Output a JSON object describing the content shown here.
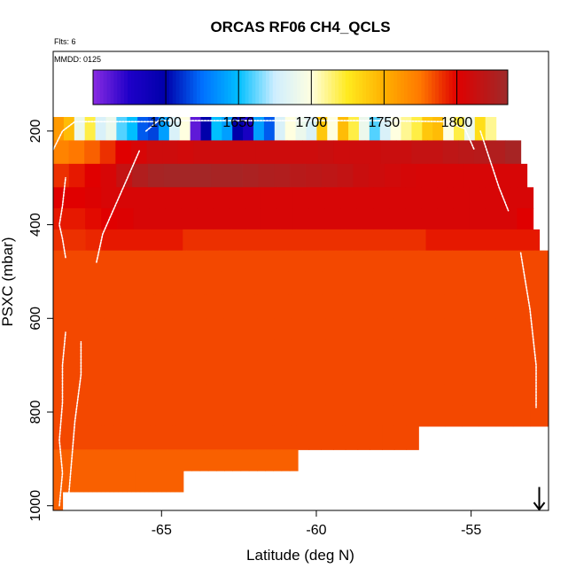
{
  "chart_data": {
    "type": "heatmap",
    "title": "ORCAS RF06 CH4_QCLS",
    "notes": {
      "flights": "Flts: 6",
      "date": "MMDD: 0125"
    },
    "xlabel": "Latitude (deg N)",
    "ylabel": "PSXC (mbar)",
    "xlim": [
      -68.5,
      -52.5
    ],
    "ylim": [
      1010,
      30
    ],
    "y_reversed": true,
    "x_ticks": [
      -65,
      -60,
      -55
    ],
    "y_ticks": [
      200,
      400,
      600,
      800,
      1000
    ],
    "x_tick_labels": [
      "-65",
      "-60",
      "-55"
    ],
    "y_tick_labels": [
      "200",
      "400",
      "600",
      "800",
      "1000"
    ],
    "grid": false,
    "colorbar": {
      "range": [
        1550,
        1835
      ],
      "ticks": [
        1600,
        1650,
        1700,
        1750,
        1800
      ],
      "tick_labels": [
        "1600",
        "1650",
        "1700",
        "1750",
        "1800"
      ],
      "stops": [
        {
          "value": 1550,
          "color": "#8a2be2"
        },
        {
          "value": 1575,
          "color": "#1e00c8"
        },
        {
          "value": 1600,
          "color": "#0000aa"
        },
        {
          "value": 1625,
          "color": "#0070ff"
        },
        {
          "value": 1650,
          "color": "#00bfff"
        },
        {
          "value": 1675,
          "color": "#cfeeff"
        },
        {
          "value": 1700,
          "color": "#ffffe0"
        },
        {
          "value": 1725,
          "color": "#ffea1e"
        },
        {
          "value": 1750,
          "color": "#ffb000"
        },
        {
          "value": 1775,
          "color": "#ff7800"
        },
        {
          "value": 1800,
          "color": "#e00000"
        },
        {
          "value": 1835,
          "color": "#9e2a2a"
        }
      ]
    },
    "rows": [
      {
        "p_top": 170,
        "p_bottom": 220,
        "x_start": -68.5,
        "x_end": -54.2,
        "values": [
          1760,
          1745,
          1690,
          1720,
          1680,
          1690,
          1660,
          1650,
          1620,
          1615,
          1640,
          1680,
          1700,
          1560,
          1600,
          1650,
          1640,
          1600,
          1580,
          1640,
          1620,
          1680,
          1700,
          1690,
          1680,
          1740,
          1700,
          1745,
          1720,
          1690,
          1660,
          1680,
          1700,
          1710,
          1720,
          1740,
          1745,
          1700,
          1720,
          1690,
          1730,
          1710
        ]
      },
      {
        "p_top": 220,
        "p_bottom": 270,
        "x_start": -68.5,
        "x_end": -53.4,
        "values": [
          1770,
          1775,
          1780,
          1790,
          1800,
          1805,
          1810,
          1810,
          1808,
          1810,
          1810,
          1810,
          1810,
          1810,
          1810,
          1810,
          1810,
          1812,
          1810,
          1810,
          1810,
          1812,
          1812,
          1815,
          1815,
          1818,
          1820,
          1822,
          1825,
          1830
        ]
      },
      {
        "p_top": 270,
        "p_bottom": 320,
        "x_start": -68.5,
        "x_end": -53.2,
        "values": [
          1790,
          1795,
          1800,
          1805,
          1815,
          1825,
          1830,
          1832,
          1832,
          1832,
          1830,
          1830,
          1828,
          1826,
          1825,
          1822,
          1820,
          1818,
          1816,
          1812,
          1810,
          1808,
          1806,
          1805,
          1805,
          1805,
          1805,
          1805,
          1805,
          1805
        ]
      },
      {
        "p_top": 320,
        "p_bottom": 365,
        "x_start": -68.5,
        "x_end": -53.0,
        "values": [
          1800,
          1800,
          1802,
          1805,
          1805,
          1805,
          1805,
          1805,
          1805,
          1805,
          1805,
          1805,
          1805,
          1805,
          1805,
          1805,
          1805,
          1805,
          1805,
          1805,
          1805,
          1805,
          1805,
          1805,
          1805,
          1805,
          1805,
          1805,
          1805,
          1805
        ]
      },
      {
        "p_top": 365,
        "p_bottom": 410,
        "x_start": -68.5,
        "x_end": -53.0,
        "values": [
          1795,
          1795,
          1798,
          1800,
          1802,
          1805,
          1805,
          1805,
          1805,
          1805,
          1805,
          1805,
          1805,
          1805,
          1805,
          1805,
          1805,
          1805,
          1805,
          1805,
          1805,
          1805,
          1805,
          1805,
          1805,
          1805,
          1805,
          1805,
          1805,
          1800
        ]
      },
      {
        "p_top": 410,
        "p_bottom": 455,
        "x_start": -68.5,
        "x_end": -52.8,
        "values": [
          1790,
          1790,
          1792,
          1795,
          1795,
          1795,
          1795,
          1795,
          1790,
          1790,
          1790,
          1790,
          1790,
          1790,
          1790,
          1790,
          1790,
          1790,
          1790,
          1790,
          1790,
          1790,
          1790,
          1795,
          1795,
          1795,
          1795,
          1795,
          1795,
          1795
        ]
      },
      {
        "p_top": 455,
        "p_bottom": 500,
        "x_start": -68.5,
        "x_end": -52.4,
        "values": [
          1785,
          1785,
          1785,
          1785,
          1785,
          1785,
          1785,
          1785,
          1785,
          1785,
          1785,
          1785,
          1785,
          1785,
          1785,
          1785,
          1785,
          1785,
          1785,
          1785,
          1785,
          1785,
          1785,
          1785,
          1785,
          1785,
          1785,
          1785,
          1785,
          1785
        ]
      },
      {
        "p_top": 500,
        "p_bottom": 550,
        "x_start": -68.5,
        "x_end": -52.2,
        "values": [
          1785,
          1785,
          1785,
          1785,
          1785,
          1785,
          1785,
          1785,
          1785,
          1785,
          1785,
          1785,
          1785,
          1785,
          1785,
          1785,
          1785,
          1785,
          1785,
          1785,
          1785,
          1785,
          1785,
          1785,
          1785,
          1785,
          1785,
          1785,
          1785,
          1785
        ]
      },
      {
        "p_top": 550,
        "p_bottom": 600,
        "x_start": -68.5,
        "x_end": -52.0,
        "values": [
          1785,
          1785,
          1785,
          1785,
          1785,
          1785,
          1785,
          1785,
          1785,
          1785,
          1785,
          1785,
          1785,
          1785,
          1785,
          1785,
          1785,
          1785,
          1785,
          1785,
          1785,
          1785,
          1785,
          1785,
          1785,
          1785,
          1785,
          1785,
          1785,
          1785
        ]
      },
      {
        "p_top": 600,
        "p_bottom": 645,
        "x_start": -68.5,
        "x_end": -52.0,
        "values": [
          1785,
          1785,
          1785,
          1785,
          1785,
          1785,
          1785,
          1785,
          1785,
          1785,
          1785,
          1785,
          1785,
          1785,
          1785,
          1785,
          1785,
          1785,
          1785,
          1785,
          1785,
          1785,
          1785,
          1785,
          1785,
          1785,
          1785,
          1785,
          1785,
          1785
        ]
      },
      {
        "p_top": 645,
        "p_bottom": 690,
        "x_start": -68.5,
        "x_end": -52.0,
        "values": [
          1785,
          1785,
          1785,
          1785,
          1785,
          1785,
          1785,
          1785,
          1785,
          1785,
          1785,
          1785,
          1785,
          1785,
          1785,
          1785,
          1785,
          1785,
          1785,
          1785,
          1785,
          1785,
          1785,
          1785,
          1785,
          1785,
          1785,
          1785,
          1785,
          1785
        ]
      },
      {
        "p_top": 690,
        "p_bottom": 740,
        "x_start": -68.5,
        "x_end": -52.0,
        "values": [
          1785,
          1785,
          1785,
          1785,
          1785,
          1785,
          1785,
          1785,
          1785,
          1785,
          1785,
          1785,
          1785,
          1785,
          1785,
          1785,
          1785,
          1785,
          1785,
          1785,
          1785,
          1785,
          1785,
          1785,
          1785,
          1785,
          1785,
          1785,
          1785,
          1785
        ]
      },
      {
        "p_top": 740,
        "p_bottom": 785,
        "x_start": -68.5,
        "x_end": -52.0,
        "values": [
          1785,
          1785,
          1785,
          1785,
          1785,
          1785,
          1785,
          1785,
          1785,
          1785,
          1785,
          1785,
          1785,
          1785,
          1785,
          1785,
          1785,
          1785,
          1785,
          1785,
          1785,
          1785,
          1785,
          1785,
          1785,
          1785,
          1785,
          1785,
          1785,
          1785
        ]
      },
      {
        "p_top": 785,
        "p_bottom": 830,
        "x_start": -68.5,
        "x_end": -52.0,
        "values": [
          1785,
          1785,
          1785,
          1785,
          1785,
          1785,
          1785,
          1785,
          1785,
          1785,
          1785,
          1785,
          1785,
          1785,
          1785,
          1785,
          1785,
          1785,
          1785,
          1785,
          1785,
          1785,
          1785,
          1785,
          1785,
          1785,
          1785,
          1785,
          1785,
          1785
        ]
      },
      {
        "p_top": 830,
        "p_bottom": 880,
        "x_start": -68.5,
        "x_end": -56.7,
        "values": [
          1785,
          1785,
          1785,
          1785,
          1785,
          1785,
          1785,
          1785,
          1785,
          1785,
          1785,
          1785,
          1785,
          1785,
          1785,
          1785,
          1785,
          1785,
          1785,
          1785,
          1785,
          1785,
          1785,
          1785,
          1785,
          1785,
          1785,
          1785,
          1785,
          1785
        ]
      },
      {
        "p_top": 880,
        "p_bottom": 925,
        "x_start": -68.5,
        "x_end": -60.6,
        "values": [
          1780,
          1780,
          1780,
          1780,
          1780,
          1780,
          1780,
          1780,
          1780,
          1780,
          1780,
          1780,
          1780,
          1780,
          1780,
          1780,
          1780,
          1780,
          1780,
          1780,
          1780,
          1780,
          1780,
          1780,
          1780,
          1780,
          1780,
          1780,
          1780,
          1780
        ]
      },
      {
        "p_top": 925,
        "p_bottom": 970,
        "x_start": -68.5,
        "x_end": -64.3,
        "values": [
          1780,
          1780,
          1780,
          1780,
          1780,
          1780,
          1780,
          1780,
          1780,
          1780,
          1780,
          1780,
          1780,
          1780,
          1780,
          1780,
          1780,
          1780,
          1780,
          1780,
          1780,
          1780,
          1780,
          1780,
          1780,
          1780,
          1780,
          1780,
          1780,
          1780
        ]
      },
      {
        "p_top": 970,
        "p_bottom": 1010,
        "x_start": -68.5,
        "x_end": -68.2,
        "values": [
          1780
        ]
      }
    ],
    "flight_track": [
      [
        [
          -68.3,
          1000
        ],
        [
          -68.2,
          930
        ],
        [
          -68.3,
          860
        ],
        [
          -68.2,
          780
        ],
        [
          -68.2,
          700
        ],
        [
          -68.1,
          630
        ]
      ],
      [
        [
          -68.0,
          980
        ],
        [
          -67.9,
          900
        ],
        [
          -67.8,
          820
        ],
        [
          -67.6,
          720
        ],
        [
          -67.6,
          650
        ]
      ],
      [
        [
          -68.1,
          470
        ],
        [
          -68.2,
          430
        ],
        [
          -68.3,
          400
        ],
        [
          -68.2,
          360
        ],
        [
          -68.1,
          300
        ]
      ],
      [
        [
          -68.5,
          240
        ],
        [
          -68.2,
          200
        ],
        [
          -67.8,
          180
        ],
        [
          -65.2,
          180
        ]
      ],
      [
        [
          -67.1,
          480
        ],
        [
          -66.9,
          420
        ],
        [
          -66.5,
          360
        ],
        [
          -66.1,
          300
        ],
        [
          -65.7,
          240
        ]
      ],
      [
        [
          -65.5,
          200
        ],
        [
          -65.1,
          178
        ],
        [
          -64.5,
          178
        ],
        [
          -60.2,
          178
        ],
        [
          -58.0,
          178
        ],
        [
          -55.8,
          180
        ],
        [
          -55.2,
          195
        ],
        [
          -54.9,
          240
        ]
      ],
      [
        [
          -54.7,
          200
        ],
        [
          -54.4,
          260
        ],
        [
          -54.1,
          320
        ],
        [
          -53.8,
          370
        ]
      ],
      [
        [
          -53.4,
          460
        ],
        [
          -53.1,
          580
        ],
        [
          -52.9,
          700
        ],
        [
          -52.9,
          790
        ]
      ]
    ],
    "marker": {
      "type": "arrow",
      "x": -52.8,
      "y_top": 960,
      "y_bottom": 1010
    }
  }
}
